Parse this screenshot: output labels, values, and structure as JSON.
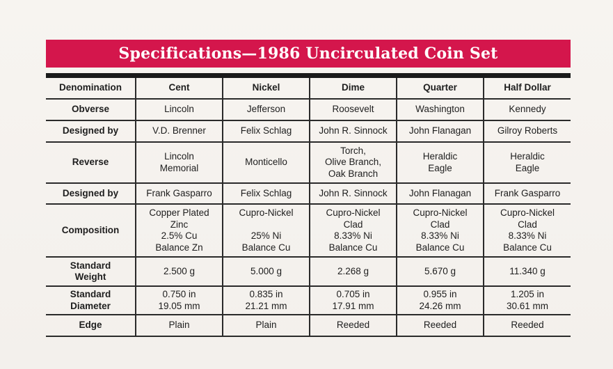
{
  "title": "Specifications—1986 Uncirculated Coin Set",
  "columns": [
    "Denomination",
    "Cent",
    "Nickel",
    "Dime",
    "Quarter",
    "Half Dollar"
  ],
  "rows": [
    {
      "label": "Obverse",
      "values": [
        "Lincoln",
        "Jefferson",
        "Roosevelt",
        "Washington",
        "Kennedy"
      ]
    },
    {
      "label": "Designed by",
      "values": [
        "V.D. Brenner",
        "Felix Schlag",
        "John R. Sinnock",
        "John Flanagan",
        "Gilroy Roberts"
      ]
    },
    {
      "label": "Reverse",
      "values": [
        "Lincoln\nMemorial",
        "Monticello",
        "Torch,\nOlive Branch,\nOak Branch",
        "Heraldic\nEagle",
        "Heraldic\nEagle"
      ]
    },
    {
      "label": "Designed by",
      "values": [
        "Frank Gasparro",
        "Felix Schlag",
        "John R. Sinnock",
        "John Flanagan",
        "Frank Gasparro"
      ]
    },
    {
      "label": "Composition",
      "values": [
        "Copper Plated\nZinc\n2.5% Cu\nBalance Zn",
        "Cupro-Nickel\n\n25% Ni\nBalance Cu",
        "Cupro-Nickel\nClad\n8.33% Ni\nBalance Cu",
        "Cupro-Nickel\nClad\n8.33% Ni\nBalance Cu",
        "Cupro-Nickel\nClad\n8.33% Ni\nBalance Cu"
      ]
    },
    {
      "label": "Standard\nWeight",
      "values": [
        "2.500 g",
        "5.000 g",
        "2.268 g",
        "5.670 g",
        "11.340 g"
      ]
    },
    {
      "label": "Standard\nDiameter",
      "values": [
        "0.750 in\n19.05 mm",
        "0.835 in\n21.21 mm",
        "0.705 in\n17.91 mm",
        "0.955 in\n24.26 mm",
        "1.205 in\n30.61 mm"
      ]
    },
    {
      "label": "Edge",
      "values": [
        "Plain",
        "Plain",
        "Reeded",
        "Reeded",
        "Reeded"
      ]
    }
  ]
}
